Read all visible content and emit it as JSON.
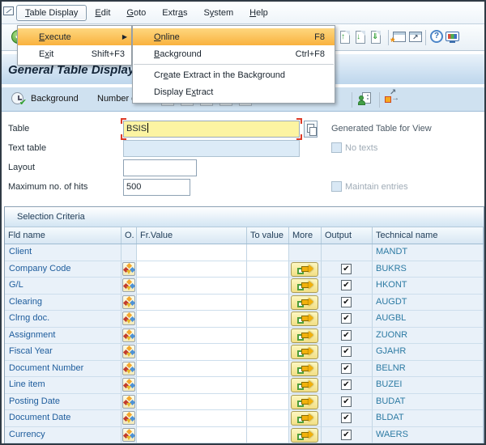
{
  "menu_bar": {
    "items": [
      {
        "label": "Table Display",
        "u": 0,
        "open": true
      },
      {
        "label": "Edit",
        "u": 0
      },
      {
        "label": "Goto",
        "u": 0
      },
      {
        "label": "Extras",
        "u": 4
      },
      {
        "label": "System",
        "u": 1
      },
      {
        "label": "Help",
        "u": 0
      }
    ]
  },
  "menus": {
    "execute_menu": {
      "items": [
        {
          "label": "Execute",
          "u": 0,
          "highlighted": true,
          "has_submenu": true
        },
        {
          "label": "Exit",
          "u": 1,
          "shortcut": "Shift+F3"
        }
      ]
    },
    "execute_submenu": {
      "items": [
        {
          "label": "Online",
          "u": 0,
          "shortcut": "F8",
          "highlighted": true
        },
        {
          "label": "Background",
          "u": 0,
          "shortcut": "Ctrl+F8"
        },
        {
          "separator": true
        },
        {
          "label": "Create Extract in the Background",
          "u": 2
        },
        {
          "label": "Display Extract",
          "u": 9
        }
      ]
    }
  },
  "toolbar": {
    "icons": [
      "enter-icon",
      "first-page-icon",
      "page-up-icon",
      "page-down-icon",
      "last-page-icon",
      "new-session-icon",
      "create-shortcut-icon",
      "help-icon",
      "customize-layout-icon"
    ]
  },
  "title_bar": {
    "title": "General Table Display"
  },
  "app_toolbar": {
    "buttons": [
      {
        "label": "Background",
        "icon": "execute-clock-icon"
      },
      {
        "label": "Number of Entries"
      }
    ],
    "icons": [
      "user-settings-icon",
      "switch-display-icon"
    ]
  },
  "form": {
    "table": {
      "label": "Table",
      "value": "BSIS",
      "focused": true
    },
    "text_table": {
      "label": "Text table",
      "value": "",
      "disabled": true
    },
    "layout": {
      "label": "Layout",
      "value": ""
    },
    "max_hits": {
      "label": "Maximum no. of hits",
      "value": "500"
    },
    "view": {
      "generated_label": "Generated Table for View",
      "no_texts_label": "No texts",
      "no_texts_checked": false,
      "maintain_label": "Maintain entries",
      "maintain_checked": false
    }
  },
  "selection_criteria": {
    "title": "Selection Criteria",
    "columns": [
      "Fld name",
      "O.",
      "Fr.Value",
      "To value",
      "More",
      "Output",
      "Technical name"
    ],
    "rows": [
      {
        "field": "Client",
        "technical": "MANDT",
        "operator": false,
        "more": false,
        "output": false
      },
      {
        "field": "Company Code",
        "technical": "BUKRS",
        "operator": true,
        "more": true,
        "output": true
      },
      {
        "field": "G/L",
        "technical": "HKONT",
        "operator": true,
        "more": true,
        "output": true
      },
      {
        "field": "Clearing",
        "technical": "AUGDT",
        "operator": true,
        "more": true,
        "output": true
      },
      {
        "field": "Clrng doc.",
        "technical": "AUGBL",
        "operator": true,
        "more": true,
        "output": true
      },
      {
        "field": "Assignment",
        "technical": "ZUONR",
        "operator": true,
        "more": true,
        "output": true
      },
      {
        "field": "Fiscal Year",
        "technical": "GJAHR",
        "operator": true,
        "more": true,
        "output": true
      },
      {
        "field": "Document Number",
        "technical": "BELNR",
        "operator": true,
        "more": true,
        "output": true
      },
      {
        "field": "Line item",
        "technical": "BUZEI",
        "operator": true,
        "more": true,
        "output": true
      },
      {
        "field": "Posting Date",
        "technical": "BUDAT",
        "operator": true,
        "more": true,
        "output": true
      },
      {
        "field": "Document Date",
        "technical": "BLDAT",
        "operator": true,
        "more": true,
        "output": true
      },
      {
        "field": "Currency",
        "technical": "WAERS",
        "operator": true,
        "more": true,
        "output": true
      }
    ]
  },
  "colors": {
    "menu_highlight": "#f9b23e",
    "focus_field_bg": "#fcf4a2",
    "field_name_text": "#1d5c9c",
    "technical_name_text": "#2c7aa3",
    "app_toolbar_bg": "#cfe1f0",
    "title_band_bg": "#bdd6ec",
    "row_bg": "#e9f1f9",
    "focus_corner_red": "#dd3a27"
  },
  "glyphs": {
    "submenu_arrow": "▶",
    "check": "✔",
    "help": "?",
    "shortcut_arrow": "↗",
    "page_up": "↑",
    "page_down": "↓",
    "last_page": "⇓",
    "first_page": "⇑"
  }
}
